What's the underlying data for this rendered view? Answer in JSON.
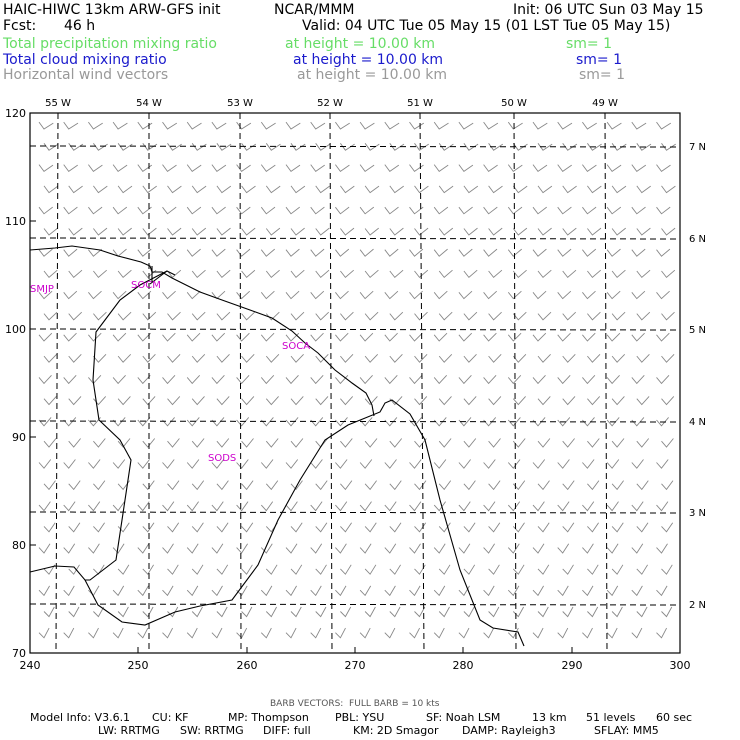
{
  "header": {
    "title_left": "HAIC-HIWC 13km ARW-GFS init",
    "title_org": "NCAR/MMM",
    "init": "Init: 06 UTC Sun 03 May 15",
    "fcst_label": "Fcst:",
    "fcst_value": "46 h",
    "valid": "Valid: 04 UTC Tue 05 May 15 (01 LST Tue 05 May 15)"
  },
  "fields": [
    {
      "name": "Total precipitation mixing ratio",
      "level": "at height = 10.00 km",
      "sm": "sm= 1",
      "color": "#66dd66"
    },
    {
      "name": "Total cloud mixing ratio",
      "level": "at height = 10.00 km",
      "sm": "sm= 1",
      "color": "#1a1acc"
    },
    {
      "name": "Horizontal wind vectors",
      "level": "at height = 10.00 km",
      "sm": "sm= 1",
      "color": "#999999"
    }
  ],
  "map": {
    "x_ticks": [
      "240",
      "250",
      "260",
      "270",
      "280",
      "290",
      "300"
    ],
    "y_ticks": [
      "70",
      "80",
      "90",
      "100",
      "110",
      "120"
    ],
    "lon_labels": [
      "55 W",
      "54 W",
      "53 W",
      "52 W",
      "51 W",
      "50 W",
      "49 W"
    ],
    "lat_labels": [
      "7 N",
      "6 N",
      "5 N",
      "4 N",
      "3 N",
      "2 N"
    ],
    "stations": [
      "SMJP",
      "SOCM",
      "SOCA",
      "SODS"
    ],
    "station_color": "#cc00cc",
    "barb_color": "#888888"
  },
  "footer": {
    "barb_note": "BARB VECTORS:  FULL BARB = 10 kts",
    "line1": [
      "Model Info: V3.6.1",
      "CU: KF",
      "MP: Thompson",
      "PBL: YSU",
      "SF: Noah LSM",
      "13 km",
      "51 levels",
      "60 sec"
    ],
    "line2": [
      "LW: RRTMG",
      "SW: RRTMG",
      "DIFF: full",
      "KM: 2D Smagor",
      "DAMP: Rayleigh3",
      "SFLAY: MM5"
    ]
  }
}
